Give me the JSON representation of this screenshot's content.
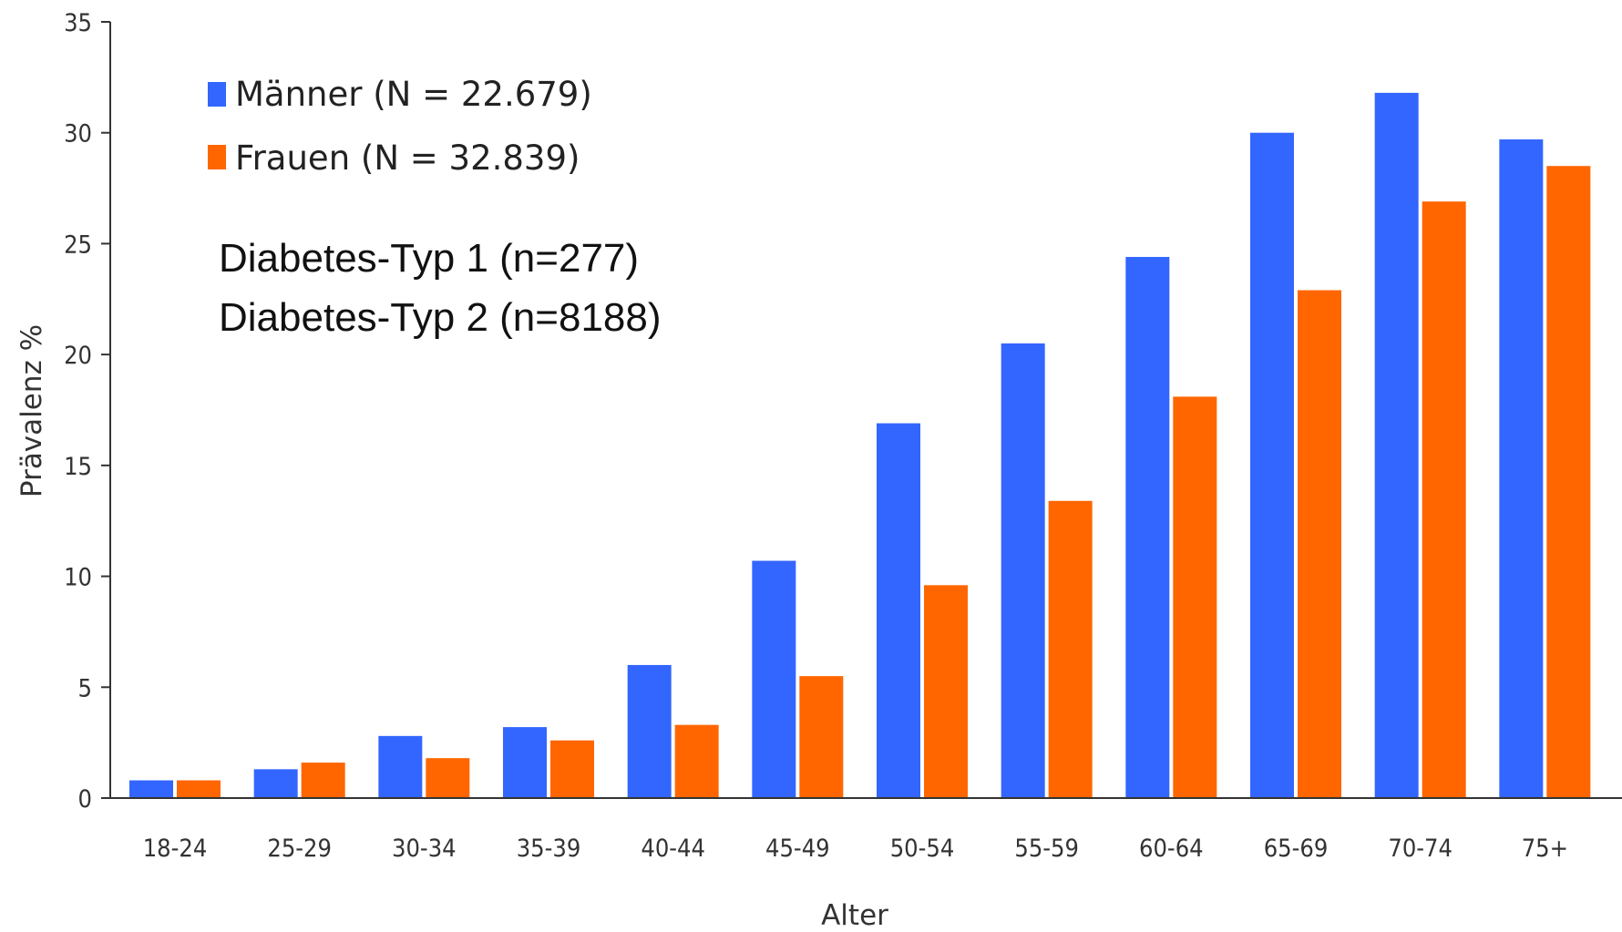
{
  "chart_data": {
    "type": "bar",
    "categories": [
      "18-24",
      "25-29",
      "30-34",
      "35-39",
      "40-44",
      "45-49",
      "50-54",
      "55-59",
      "60-64",
      "65-69",
      "70-74",
      "75+"
    ],
    "series": [
      {
        "name": "Männer (N = 22.679)",
        "color": "#3366ff",
        "values": [
          0.8,
          1.3,
          2.8,
          3.2,
          6.0,
          10.7,
          16.9,
          20.5,
          24.4,
          30.0,
          31.8,
          29.7
        ]
      },
      {
        "name": "Frauen (N = 32.839)",
        "color": "#ff6600",
        "values": [
          0.8,
          1.6,
          1.8,
          2.6,
          3.3,
          5.5,
          9.6,
          13.4,
          18.1,
          22.9,
          26.9,
          28.5
        ]
      }
    ],
    "xlabel": "Alter",
    "ylabel": "Prävalenz %",
    "ylim": [
      0,
      35
    ],
    "yticks": [
      "0",
      "5",
      "10",
      "15",
      "20",
      "25",
      "30",
      "35"
    ],
    "grid": false,
    "legend_position": "top-left",
    "annotations": [
      "Diabetes-Typ 1 (n=277)",
      "Diabetes-Typ 2 (n=8188)"
    ]
  }
}
